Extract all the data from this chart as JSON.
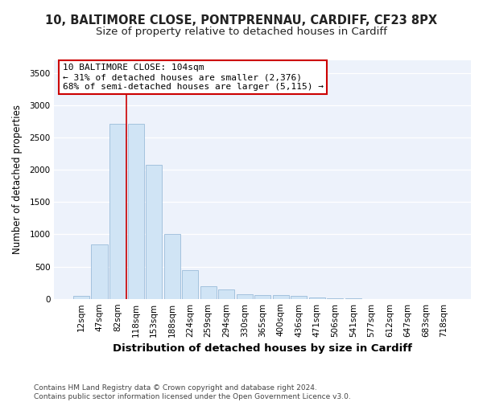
{
  "title": "10, BALTIMORE CLOSE, PONTPRENNAU, CARDIFF, CF23 8PX",
  "subtitle": "Size of property relative to detached houses in Cardiff",
  "xlabel": "Distribution of detached houses by size in Cardiff",
  "ylabel": "Number of detached properties",
  "categories": [
    "12sqm",
    "47sqm",
    "82sqm",
    "118sqm",
    "153sqm",
    "188sqm",
    "224sqm",
    "259sqm",
    "294sqm",
    "330sqm",
    "365sqm",
    "400sqm",
    "436sqm",
    "471sqm",
    "506sqm",
    "541sqm",
    "577sqm",
    "612sqm",
    "647sqm",
    "683sqm",
    "718sqm"
  ],
  "values": [
    50,
    850,
    2720,
    2720,
    2075,
    1005,
    450,
    200,
    140,
    75,
    60,
    60,
    40,
    20,
    5,
    3,
    2,
    2,
    2,
    1,
    1
  ],
  "bar_color": "#d0e4f5",
  "bar_edgecolor": "#9bbcda",
  "bar_linewidth": 0.6,
  "vline_x": 2.5,
  "vline_color": "#cc0000",
  "vline_linewidth": 1.2,
  "annotation_text": "10 BALTIMORE CLOSE: 104sqm\n← 31% of detached houses are smaller (2,376)\n68% of semi-detached houses are larger (5,115) →",
  "annotation_box_color": "#cc0000",
  "ylim": [
    0,
    3700
  ],
  "yticks": [
    0,
    500,
    1000,
    1500,
    2000,
    2500,
    3000,
    3500
  ],
  "axes_bg_color": "#edf2fb",
  "fig_bg_color": "#ffffff",
  "grid_color": "#ffffff",
  "footer": "Contains HM Land Registry data © Crown copyright and database right 2024.\nContains public sector information licensed under the Open Government Licence v3.0.",
  "title_fontsize": 10.5,
  "subtitle_fontsize": 9.5,
  "xlabel_fontsize": 9.5,
  "ylabel_fontsize": 8.5,
  "tick_fontsize": 7.5,
  "annot_fontsize": 8.0,
  "footer_fontsize": 6.5
}
